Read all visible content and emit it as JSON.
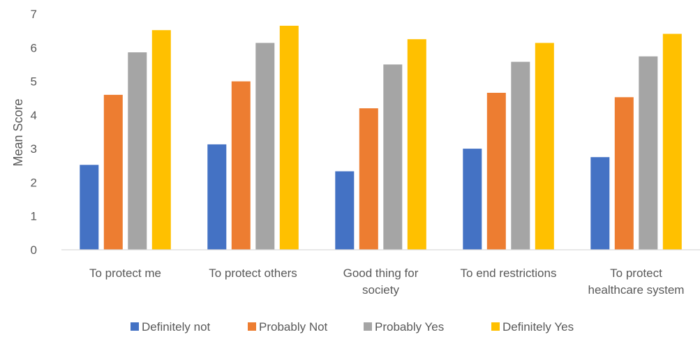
{
  "chart_data": {
    "type": "bar",
    "title": "",
    "xlabel": "",
    "ylabel": "Mean Score",
    "ylim": [
      0,
      7
    ],
    "yticks": [
      0,
      1,
      2,
      3,
      4,
      5,
      6,
      7
    ],
    "grid": false,
    "legend_position": "bottom",
    "categories": [
      [
        "To protect me"
      ],
      [
        "To protect others"
      ],
      [
        "Good thing for",
        "society"
      ],
      [
        "To end restrictions"
      ],
      [
        "To protect",
        "healthcare system"
      ]
    ],
    "series": [
      {
        "name": "Definitely not",
        "color": "#4472C4",
        "values": [
          2.52,
          3.13,
          2.33,
          3.0,
          2.75
        ]
      },
      {
        "name": "Probably Not",
        "color": "#ED7D31",
        "values": [
          4.6,
          5.0,
          4.2,
          4.66,
          4.53
        ]
      },
      {
        "name": "Probably Yes",
        "color": "#A5A5A5",
        "values": [
          5.86,
          6.14,
          5.5,
          5.58,
          5.74
        ]
      },
      {
        "name": "Definitely Yes",
        "color": "#FFC000",
        "values": [
          6.52,
          6.65,
          6.25,
          6.14,
          6.41
        ]
      }
    ]
  }
}
